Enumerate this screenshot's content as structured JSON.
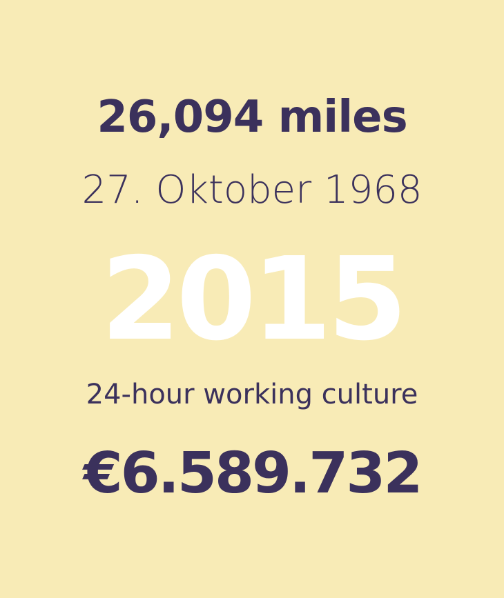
{
  "colors": {
    "background": "#f8ebb6",
    "ink": "#3b315c",
    "highlight": "#ffffff"
  },
  "specimen": {
    "lines": [
      {
        "text": "26,094 miles",
        "color": "#3b315c"
      },
      {
        "text": "27. Oktober 1968",
        "color": "#3b315c"
      },
      {
        "text": "2015",
        "color": "#ffffff"
      },
      {
        "text": "24-hour working culture",
        "color": "#3b315c"
      },
      {
        "text": "€6.589.732",
        "color": "#3b315c"
      }
    ]
  }
}
